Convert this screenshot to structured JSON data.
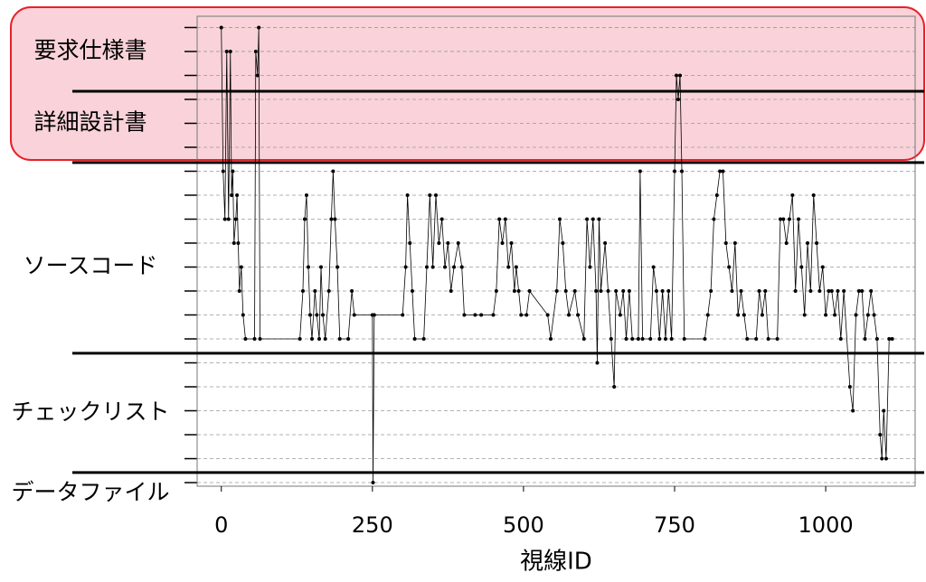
{
  "chart_data": {
    "type": "line",
    "x_label": "視線ID",
    "x": [
      0,
      3,
      6,
      9,
      12,
      15,
      17,
      19,
      21,
      24,
      26,
      28,
      30,
      33,
      36,
      40,
      55,
      57,
      60,
      62,
      64,
      130,
      135,
      138,
      141,
      144,
      147,
      150,
      155,
      158,
      162,
      165,
      168,
      172,
      178,
      182,
      185,
      188,
      192,
      196,
      210,
      216,
      220,
      250,
      251,
      253,
      300,
      305,
      308,
      312,
      316,
      320,
      335,
      340,
      345,
      350,
      355,
      360,
      365,
      370,
      375,
      380,
      385,
      392,
      398,
      402,
      420,
      430,
      450,
      455,
      460,
      465,
      470,
      475,
      480,
      485,
      488,
      492,
      496,
      505,
      510,
      540,
      545,
      555,
      560,
      565,
      570,
      575,
      585,
      590,
      600,
      605,
      610,
      615,
      620,
      622,
      625,
      628,
      635,
      640,
      645,
      650,
      653,
      660,
      665,
      670,
      675,
      680,
      690,
      693,
      697,
      710,
      715,
      720,
      725,
      730,
      735,
      740,
      745,
      750,
      753,
      756,
      759,
      762,
      766,
      800,
      805,
      810,
      815,
      820,
      825,
      830,
      835,
      840,
      845,
      850,
      855,
      860,
      865,
      870,
      885,
      890,
      895,
      900,
      905,
      920,
      925,
      930,
      935,
      940,
      945,
      950,
      955,
      960,
      965,
      970,
      975,
      980,
      985,
      990,
      995,
      1000,
      1005,
      1010,
      1015,
      1020,
      1025,
      1030,
      1040,
      1045,
      1050,
      1055,
      1060,
      1065,
      1070,
      1075,
      1080,
      1085,
      1090,
      1093,
      1096,
      1100,
      1105,
      1110
    ],
    "series": [
      {
        "color": "#000000",
        "values": [
          19,
          13,
          11,
          18,
          11,
          18,
          12,
          13,
          10,
          11,
          12,
          10,
          8,
          9,
          7,
          6,
          6,
          18,
          17,
          19,
          6,
          6,
          8,
          11,
          12,
          9,
          7,
          6,
          8,
          7,
          6,
          9,
          7,
          6,
          8,
          11,
          13,
          11,
          9,
          6,
          6,
          8,
          7,
          7,
          0,
          7,
          7,
          9,
          12,
          10,
          8,
          6,
          6,
          9,
          12,
          9,
          12,
          10,
          11,
          9,
          10,
          8,
          9,
          10,
          9,
          7,
          7,
          7,
          7,
          8,
          11,
          10,
          11,
          9,
          10,
          8,
          9,
          8,
          7,
          7,
          8,
          7,
          6,
          8,
          11,
          10,
          8,
          7,
          8,
          7,
          6,
          11,
          9,
          11,
          8,
          5,
          11,
          8,
          10,
          8,
          6,
          4,
          8,
          7,
          8,
          6,
          8,
          6,
          6,
          13,
          6,
          6,
          9,
          8,
          6,
          8,
          6,
          8,
          6,
          13,
          17,
          16,
          17,
          13,
          6,
          6,
          7,
          8,
          11,
          12,
          13,
          13,
          10,
          9,
          8,
          10,
          7,
          8,
          7,
          6,
          6,
          8,
          7,
          8,
          6,
          6,
          11,
          11,
          10,
          11,
          12,
          8,
          11,
          9,
          7,
          10,
          8,
          12,
          10,
          8,
          9,
          7,
          8,
          8,
          7,
          8,
          6,
          8,
          4,
          3,
          7,
          8,
          8,
          6,
          7,
          8,
          7,
          6,
          2,
          1,
          3,
          1,
          6,
          6
        ]
      }
    ],
    "xlim": [
      -40,
      1148
    ],
    "xticks": [
      0,
      250,
      500,
      750,
      1000
    ],
    "ylim": [
      -0.15,
      19.47
    ],
    "ygrid": [
      0,
      1,
      2,
      3,
      4,
      5,
      6,
      7,
      8,
      9,
      10,
      11,
      12,
      13,
      14,
      15,
      16,
      17,
      18,
      19
    ],
    "yticks": [
      {
        "value": 18,
        "label": "要求仕様書"
      },
      {
        "value": 15,
        "label": "詳細設計書"
      },
      {
        "value": 9,
        "label": "ソースコード"
      },
      {
        "value": 2.9,
        "label": "チェックリスト"
      },
      {
        "value": -0.45,
        "label": "データファイル"
      }
    ],
    "separators": [
      16.34,
      13.36,
      5.4,
      0.42
    ]
  }
}
